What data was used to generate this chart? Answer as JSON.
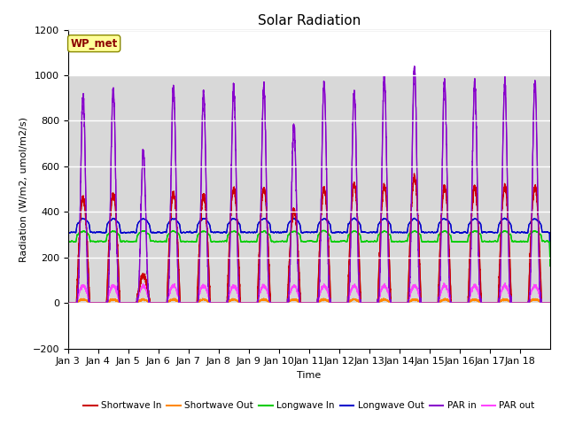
{
  "title": "Solar Radiation",
  "xlabel": "Time",
  "ylabel": "Radiation (W/m2, umol/m2/s)",
  "ylim": [
    -200,
    1200
  ],
  "yticks": [
    -200,
    0,
    200,
    400,
    600,
    800,
    1000,
    1200
  ],
  "xtick_labels": [
    "Jan 3",
    "Jan 4",
    "Jan 5",
    "Jan 6",
    "Jan 7",
    "Jan 8",
    "Jan 9",
    "Jan 10",
    "Jan 11",
    "Jan 12",
    "Jan 13",
    "Jan 14",
    "Jan 15",
    "Jan 16",
    "Jan 17",
    "Jan 18"
  ],
  "legend_labels": [
    "Shortwave In",
    "Shortwave Out",
    "Longwave In",
    "Longwave Out",
    "PAR in",
    "PAR out"
  ],
  "legend_colors": [
    "#cc0000",
    "#ff8800",
    "#00cc00",
    "#0000cc",
    "#8800cc",
    "#ff44ff"
  ],
  "annotation_text": "WP_met",
  "annotation_color": "#8b0000",
  "annotation_bg": "#ffff99",
  "band_color": "#d8d8d8",
  "title_fontsize": 11,
  "axis_label_fontsize": 8,
  "tick_fontsize": 8,
  "n_days": 16,
  "pts_per_day": 288,
  "par_peak_amps": [
    910,
    940,
    660,
    950,
    920,
    950,
    950,
    780,
    970,
    930,
    990,
    1035,
    970,
    970,
    970,
    970
  ],
  "sw_peak_amps": [
    460,
    480,
    120,
    480,
    470,
    500,
    500,
    410,
    500,
    520,
    510,
    550,
    510,
    510,
    510,
    510
  ]
}
